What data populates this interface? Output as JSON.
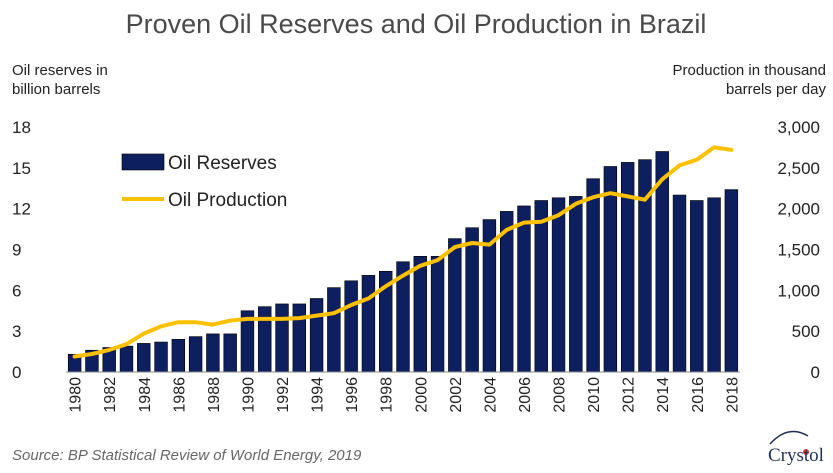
{
  "chart_data": {
    "type": "bar+line",
    "title": "Proven Oil Reserves and Oil Production in Brazil",
    "y_left_label": [
      "Oil reserves in",
      "billion barrels"
    ],
    "y_right_label": [
      "Production in thousand",
      "barrels per day"
    ],
    "y_left_range": [
      0,
      18
    ],
    "y_left_ticks": [
      "0",
      "3",
      "6",
      "9",
      "12",
      "15",
      "18"
    ],
    "y_right_range": [
      0,
      3000
    ],
    "y_right_ticks": [
      "0",
      "500",
      "1,000",
      "1,500",
      "2,000",
      "2,500",
      "3,000"
    ],
    "x": [
      1980,
      1981,
      1982,
      1983,
      1984,
      1985,
      1986,
      1987,
      1988,
      1989,
      1990,
      1991,
      1992,
      1993,
      1994,
      1995,
      1996,
      1997,
      1998,
      1999,
      2000,
      2001,
      2002,
      2003,
      2004,
      2005,
      2006,
      2007,
      2008,
      2009,
      2010,
      2011,
      2012,
      2013,
      2014,
      2015,
      2016,
      2017,
      2018
    ],
    "x_tick_labels": [
      "1980",
      "1982",
      "1984",
      "1986",
      "1988",
      "1990",
      "1992",
      "1994",
      "1996",
      "1998",
      "2000",
      "2002",
      "2004",
      "2006",
      "2008",
      "2010",
      "2012",
      "2014",
      "2016",
      "2018"
    ],
    "series": [
      {
        "name": "Oil Reserves",
        "kind": "bar",
        "axis": "left",
        "color": "#0d1f5e",
        "values": [
          1.3,
          1.6,
          1.8,
          1.9,
          2.1,
          2.2,
          2.4,
          2.6,
          2.8,
          2.8,
          4.5,
          4.8,
          5.0,
          5.0,
          5.4,
          6.2,
          6.7,
          7.1,
          7.4,
          8.1,
          8.5,
          8.5,
          9.8,
          10.6,
          11.2,
          11.8,
          12.2,
          12.6,
          12.8,
          12.9,
          14.2,
          15.1,
          15.4,
          15.6,
          16.2,
          13.0,
          12.6,
          12.8,
          13.4
        ]
      },
      {
        "name": "Oil Production",
        "kind": "line",
        "axis": "right",
        "color": "#ffc000",
        "values": [
          190,
          220,
          270,
          340,
          470,
          560,
          610,
          610,
          580,
          630,
          650,
          650,
          650,
          660,
          690,
          720,
          820,
          900,
          1050,
          1180,
          1300,
          1370,
          1530,
          1580,
          1560,
          1740,
          1830,
          1840,
          1920,
          2060,
          2140,
          2190,
          2150,
          2110,
          2360,
          2530,
          2600,
          2750,
          2720
        ]
      }
    ],
    "legend_position": "upper-left",
    "grid": false
  },
  "source": "Source: BP Statistical Review of World Energy, 2019",
  "logo": {
    "text": "Crystol",
    "color": "#1f2f5c",
    "accent": "#e03030"
  }
}
